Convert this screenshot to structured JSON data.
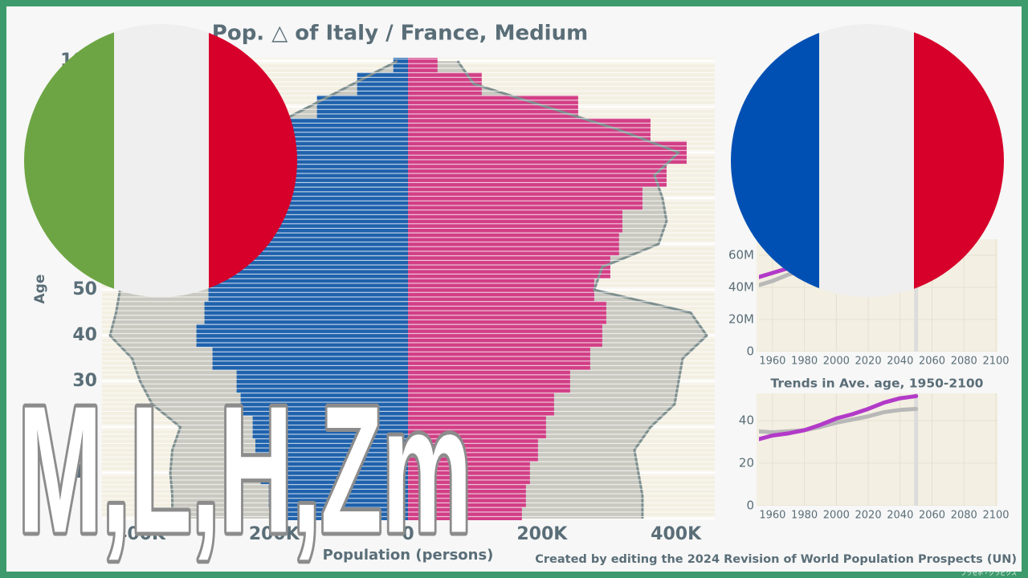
{
  "chart_data": [
    {
      "type": "pyramid",
      "title": "Pop. △ of Italy / France, Medium",
      "ylabel": "Age",
      "xlabel": "Population (persons)",
      "y": [
        0,
        5,
        10,
        15,
        20,
        25,
        30,
        35,
        40,
        45,
        50,
        55,
        60,
        65,
        70,
        75,
        80,
        85,
        90,
        95,
        100
      ],
      "series": [
        {
          "side": "left",
          "style": "bar",
          "color": "#1f62ad",
          "values": [
            196000,
            208000,
            220000,
            228000,
            232000,
            250000,
            256000,
            292000,
            316000,
            304000,
            298000,
            298000,
            274000,
            250000,
            226000,
            202000,
            190000,
            178000,
            136000,
            76000,
            22000
          ]
        },
        {
          "side": "right",
          "style": "bar",
          "color": "#d23f86",
          "values": [
            170000,
            176000,
            182000,
            194000,
            206000,
            218000,
            242000,
            272000,
            290000,
            296000,
            278000,
            302000,
            315000,
            320000,
            350000,
            386000,
            416000,
            362000,
            254000,
            110000,
            44000
          ]
        },
        {
          "side": "left",
          "style": "area",
          "color": "#c9c9c1",
          "values": [
            352000,
            352000,
            355000,
            352000,
            340000,
            382000,
            400000,
            412000,
            445000,
            436000,
            430000,
            406000,
            382000,
            370000,
            346000,
            310000,
            262000,
            214000,
            148000,
            82000,
            16000
          ]
        },
        {
          "side": "right",
          "style": "area",
          "color": "#c9c9c1",
          "values": [
            350000,
            350000,
            344000,
            338000,
            362000,
            398000,
            404000,
            410000,
            446000,
            422000,
            278000,
            290000,
            374000,
            386000,
            380000,
            368000,
            404000,
            314000,
            206000,
            98000,
            74000
          ]
        }
      ],
      "xlim": [
        -457000,
        458000
      ],
      "xticks": [
        {
          "value": -400000,
          "label": "400K"
        },
        {
          "value": -200000,
          "label": "200K"
        },
        0,
        {
          "value": 200000,
          "label": "200K"
        },
        {
          "value": 400000,
          "label": "400K"
        }
      ],
      "ylim": [
        -0.35,
        100.7
      ],
      "yticks": [
        0,
        10,
        20,
        30,
        40,
        50,
        60,
        70,
        80,
        90,
        100
      ],
      "grid": true
    },
    {
      "type": "line",
      "x": [
        1950,
        1960,
        1970,
        1980,
        1990,
        2000,
        2010,
        2020,
        2030,
        2040,
        2050
      ],
      "series": [
        {
          "color": "#b23ac8",
          "values": [
            46000000,
            49000000,
            52000000,
            54000000,
            56000000,
            57000000,
            58000000,
            59000000,
            59000000,
            58000000,
            57000000
          ]
        },
        {
          "color": "#b8b8b8",
          "values": [
            41000000,
            44000000,
            48000000,
            51000000,
            54000000,
            56000000,
            58000000,
            59000000,
            59000000,
            58000000,
            57000000
          ]
        }
      ],
      "highlight": 2050,
      "xlim": [
        1950,
        2101
      ],
      "xticks": [
        1960,
        1980,
        2000,
        2020,
        2040,
        2060,
        2080,
        2100
      ],
      "ylim": [
        0,
        70000000
      ],
      "yticks": [
        0,
        {
          "value": 20000000,
          "label": "20M"
        },
        {
          "value": 40000000,
          "label": "40M"
        },
        {
          "value": 60000000,
          "label": "60M"
        }
      ]
    },
    {
      "type": "line",
      "title": "Trends in Ave. age, 1950-2100",
      "x": [
        1950,
        1960,
        1970,
        1980,
        1990,
        2000,
        2010,
        2020,
        2030,
        2040,
        2050
      ],
      "series": [
        {
          "color": "#b23ac8",
          "values": [
            31,
            33,
            34,
            35.5,
            38,
            41,
            43,
            45.5,
            48.5,
            50.5,
            51.5
          ]
        },
        {
          "color": "#b8b8b8",
          "values": [
            35,
            34.5,
            35,
            35.5,
            37,
            39,
            40.5,
            42,
            44,
            45,
            45.5
          ]
        }
      ],
      "highlight": 2050,
      "xlim": [
        1950,
        2101
      ],
      "xticks": [
        1960,
        1980,
        2000,
        2020,
        2040,
        2060,
        2080,
        2100
      ],
      "ylim": [
        0,
        52.8
      ],
      "yticks": [
        0,
        20,
        40
      ]
    }
  ],
  "overlay_text": "M,L,H,Zm",
  "credit": "Created by editing the 2024 Revision of World Population Prospects (UN)",
  "watermark": "プラセボ・グラビクス"
}
